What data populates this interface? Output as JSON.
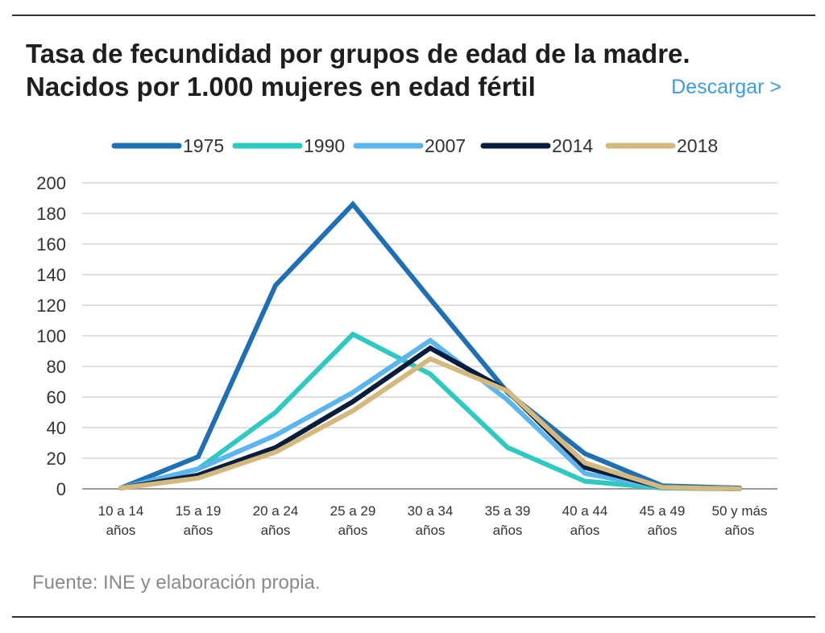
{
  "header": {
    "title_line1": "Tasa de fecundidad por grupos de edad de la madre.",
    "title_line2": "Nacidos por 1.000 mujeres en edad fértil",
    "download_label": "Descargar >"
  },
  "footer": {
    "source": "Fuente: INE y elaboración propia."
  },
  "chart_data": {
    "type": "line",
    "title": "Tasa de fecundidad por grupos de edad de la madre. Nacidos por 1.000 mujeres en edad fértil",
    "xlabel": "",
    "ylabel": "",
    "categories": [
      [
        "10 a 14",
        "años"
      ],
      [
        "15 a 19",
        "años"
      ],
      [
        "20 a 24",
        "años"
      ],
      [
        "25 a 29",
        "años"
      ],
      [
        "30 a 34",
        "años"
      ],
      [
        "35 a 39",
        "años"
      ],
      [
        "40 a 44",
        "años"
      ],
      [
        "45 a 49",
        "años"
      ],
      [
        "50 y más",
        "años"
      ]
    ],
    "ylim": [
      0,
      200
    ],
    "yticks": [
      0,
      20,
      40,
      60,
      80,
      100,
      120,
      140,
      160,
      180,
      200
    ],
    "grid": true,
    "legend_position": "top",
    "series": [
      {
        "name": "1975",
        "color": "#1f6fb5",
        "values": [
          0.5,
          21,
          133,
          186,
          124,
          63,
          23,
          2,
          0.5
        ]
      },
      {
        "name": "1990",
        "color": "#2ec9c1",
        "values": [
          0.5,
          13,
          50,
          101,
          75,
          27,
          5,
          0.5,
          0
        ]
      },
      {
        "name": "2007",
        "color": "#5bb6ee",
        "values": [
          0.5,
          13,
          35,
          63,
          97,
          58,
          10,
          1,
          0
        ]
      },
      {
        "name": "2014",
        "color": "#071d3d",
        "values": [
          0.5,
          9,
          27,
          57,
          92,
          64,
          14,
          1,
          0
        ]
      },
      {
        "name": "2018",
        "color": "#d4b97e",
        "values": [
          0.5,
          7,
          24,
          51,
          85,
          64,
          17,
          1,
          0
        ]
      }
    ]
  }
}
